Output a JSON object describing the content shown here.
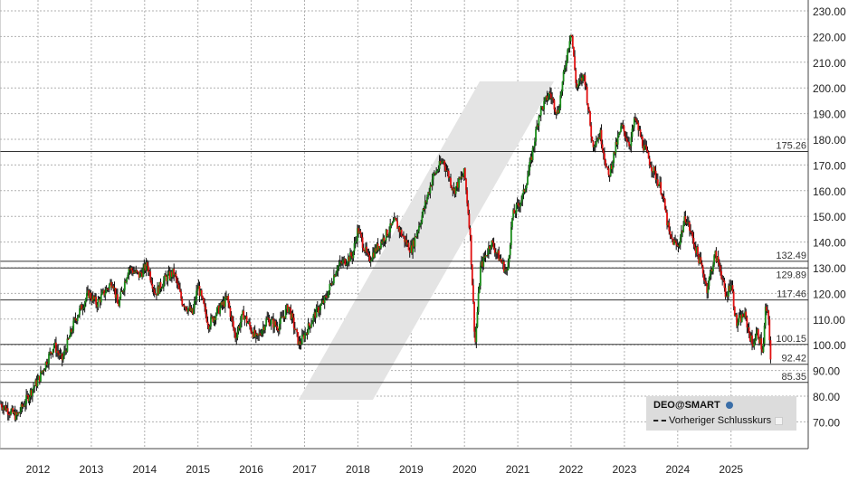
{
  "chart_data": {
    "type": "candlestick",
    "title": "",
    "xlabel": "",
    "ylabel": "",
    "ylim": [
      64,
      232
    ],
    "y_ticks": [
      "70.00",
      "80.00",
      "90.00",
      "100.00",
      "110.00",
      "120.00",
      "130.00",
      "140.00",
      "150.00",
      "160.00",
      "170.00",
      "180.00",
      "190.00",
      "200.00",
      "210.00",
      "220.00",
      "230.00"
    ],
    "x_ticks": [
      "2012",
      "2013",
      "2014",
      "2015",
      "2016",
      "2017",
      "2018",
      "2019",
      "2020",
      "2021",
      "2022",
      "2023",
      "2024",
      "2025"
    ],
    "grid": true,
    "axis_side": "right",
    "levels": [
      "175.26",
      "132.49",
      "129.89",
      "117.46",
      "100.15",
      "92.42",
      "85.35"
    ],
    "up_color": "#1a8c1a",
    "down_color": "#e01010",
    "series": [
      {
        "name": "DEO@SMART",
        "points": [
          [
            2011.3,
            77
          ],
          [
            2011.6,
            72
          ],
          [
            2011.9,
            83
          ],
          [
            2012.0,
            86
          ],
          [
            2012.3,
            100
          ],
          [
            2012.45,
            94
          ],
          [
            2012.7,
            110
          ],
          [
            2012.95,
            120
          ],
          [
            2013.1,
            116
          ],
          [
            2013.4,
            125
          ],
          [
            2013.5,
            115
          ],
          [
            2013.7,
            130
          ],
          [
            2013.9,
            127
          ],
          [
            2014.05,
            131
          ],
          [
            2014.2,
            120
          ],
          [
            2014.4,
            126
          ],
          [
            2014.55,
            128
          ],
          [
            2014.7,
            117
          ],
          [
            2014.9,
            112
          ],
          [
            2015.0,
            123
          ],
          [
            2015.2,
            108
          ],
          [
            2015.4,
            114
          ],
          [
            2015.55,
            118
          ],
          [
            2015.7,
            103
          ],
          [
            2015.85,
            112
          ],
          [
            2016.0,
            106
          ],
          [
            2016.1,
            102
          ],
          [
            2016.3,
            110
          ],
          [
            2016.5,
            107
          ],
          [
            2016.7,
            115
          ],
          [
            2016.9,
            100
          ],
          [
            2017.0,
            104
          ],
          [
            2017.2,
            112
          ],
          [
            2017.4,
            118
          ],
          [
            2017.6,
            130
          ],
          [
            2017.9,
            135
          ],
          [
            2018.0,
            145
          ],
          [
            2018.2,
            133
          ],
          [
            2018.5,
            142
          ],
          [
            2018.7,
            148
          ],
          [
            2018.9,
            140
          ],
          [
            2019.0,
            137
          ],
          [
            2019.2,
            150
          ],
          [
            2019.4,
            165
          ],
          [
            2019.6,
            172
          ],
          [
            2019.8,
            160
          ],
          [
            2020.0,
            167
          ],
          [
            2020.1,
            145
          ],
          [
            2020.2,
            100
          ],
          [
            2020.3,
            130
          ],
          [
            2020.5,
            140
          ],
          [
            2020.7,
            132
          ],
          [
            2020.8,
            128
          ],
          [
            2020.9,
            150
          ],
          [
            2021.1,
            158
          ],
          [
            2021.25,
            172
          ],
          [
            2021.4,
            190
          ],
          [
            2021.6,
            198
          ],
          [
            2021.75,
            190
          ],
          [
            2021.9,
            210
          ],
          [
            2022.0,
            223
          ],
          [
            2022.1,
            200
          ],
          [
            2022.25,
            205
          ],
          [
            2022.4,
            178
          ],
          [
            2022.55,
            182
          ],
          [
            2022.7,
            165
          ],
          [
            2022.85,
            178
          ],
          [
            2022.95,
            185
          ],
          [
            2023.1,
            178
          ],
          [
            2023.2,
            188
          ],
          [
            2023.35,
            178
          ],
          [
            2023.5,
            170
          ],
          [
            2023.7,
            160
          ],
          [
            2023.85,
            142
          ],
          [
            2024.0,
            138
          ],
          [
            2024.15,
            150
          ],
          [
            2024.3,
            140
          ],
          [
            2024.45,
            130
          ],
          [
            2024.55,
            122
          ],
          [
            2024.7,
            135
          ],
          [
            2024.8,
            130
          ],
          [
            2024.9,
            118
          ],
          [
            2025.0,
            125
          ],
          [
            2025.1,
            108
          ],
          [
            2025.25,
            112
          ],
          [
            2025.4,
            100
          ],
          [
            2025.5,
            105
          ],
          [
            2025.6,
            97
          ],
          [
            2025.65,
            115
          ],
          [
            2025.7,
            110
          ],
          [
            2025.75,
            93
          ]
        ]
      }
    ]
  },
  "legend": {
    "symbol": "DEO@SMART",
    "symbol_icon": "globe-icon",
    "previous_close": "Vorheriger Schlusskurs"
  }
}
